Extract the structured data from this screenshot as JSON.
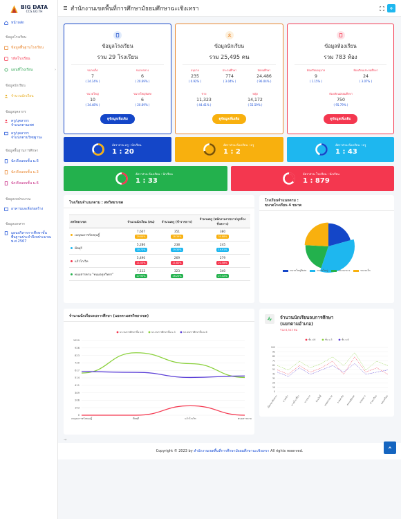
{
  "brand": {
    "title": "BIG DATA",
    "subtitle": "CCS.GO.TH"
  },
  "header": {
    "title": "สำนักงานเขตพื้นที่การศึกษามัธยมศึกษาฉะเชิงเทรา"
  },
  "sidebar": {
    "home": "หน้าหลัก",
    "sections": {
      "school": "ข้อมูลโรงเรียน",
      "student": "ข้อมูลนักเรียน",
      "staff": "ข้อมูลบุคลากร",
      "quality": "ข้อมูลพื้นฐานการศึกษา",
      "budget": "ข้อมูลงบประมาณ",
      "docs": "ข้อมูลเอกสาร"
    },
    "items": {
      "school_basic": "ข้อมูลพื้นฐานโรงเรียน",
      "school_code": "รหัสโรงเรียน",
      "school_map": "แผนที่โรงเรียน",
      "student_count": "จำนวนนักเรียน",
      "staff_count_1": "ครู/บุคลากร",
      "staff_count_1b": "จำแนกตามเพศ",
      "staff_count_2": "ครู/บุคลากร",
      "staff_count_2b": "จำแนกตามวิทยฐานะ",
      "grad_1": "นักเรียนจบชั้น ม.6",
      "grad_2": "นักเรียนจบชั้น ม.3",
      "grad_3": "นักเรียนจบชั้น ม.6",
      "budget_1": "อาคารและสิ่งก่อสร้าง",
      "doc_1a": "แผนบริหารการศึกษาขั้น",
      "doc_1b": "พื้นฐานประจำปีงบประมาณ",
      "doc_1c": "พ.ศ.2567"
    }
  },
  "school_card": {
    "title": "ข้อมูลโรงเรียน",
    "total": "รวม 29 โรงเรียน",
    "cells": [
      {
        "label": "ขนาดเล็ก",
        "value": "7",
        "pct": "( 24.14% )"
      },
      {
        "label": "ขนาดกลาง",
        "value": "6",
        "pct": "( 20.69% )"
      },
      {
        "label": "ขนาดใหญ่",
        "value": "10",
        "pct": "( 34.48% )"
      },
      {
        "label": "ขนาดใหญ่พิเศษ",
        "value": "6",
        "pct": "( 20.69% )"
      }
    ],
    "button": "ดูข้อมูลเพิ่มเติม"
  },
  "student_card": {
    "title": "ข้อมูลนักเรียน",
    "total": "รวม 25,495 คน",
    "cells": [
      {
        "label": "อนุบาล",
        "value": "235",
        "pct": "( 0.92% )"
      },
      {
        "label": "ประถมศึกษา",
        "value": "774",
        "pct": "( 3.04% )"
      },
      {
        "label": "มัธยมศึกษา",
        "value": "24,486",
        "pct": "( 96.04% )"
      },
      {
        "label": "ชาย",
        "value": "11,323",
        "pct": "( 44.41% )"
      },
      {
        "label": "หญิง",
        "value": "14,172",
        "pct": "( 55.59% )"
      }
    ],
    "button": "ดูข้อมูลเพิ่มเติม"
  },
  "room_card": {
    "title": "ข้อมูลห้องเรียน",
    "total": "รวม 783 ห้อง",
    "cells": [
      {
        "label": "ห้องเรียนอนุบาล",
        "value": "9",
        "pct": "( 1.15% )"
      },
      {
        "label": "ห้องเรียนประถมศึกษา",
        "value": "24",
        "pct": "( 3.07% )"
      },
      {
        "label": "ห้องเรียนมัธยมศึกษา",
        "value": "750",
        "pct": "( 95.79% )"
      }
    ],
    "button": "ดูข้อมูลเพิ่มเติม"
  },
  "ratios": [
    {
      "label": "อัตราส่วน ครู : นักเรียน",
      "value": "1 : 20",
      "color": "#1446c8",
      "fill": 0.65
    },
    {
      "label": "อัตราส่วน ห้องเรียน : ครู",
      "value": "1 : 2",
      "color": "#f8b00e",
      "fill": 0.7
    },
    {
      "label": "อัตราส่วน ห้องเรียน : ครู",
      "value": "1 : 43",
      "color": "#1eb7ef",
      "fill": 0.55
    },
    {
      "label": "อัตราส่วน ห้องเรียน : นักเรียน",
      "value": "1 : 33",
      "color": "#23b14d",
      "fill": 0.5
    },
    {
      "label": "อัตราส่วน โรงเรียน : นักเรียน",
      "value": "1 : 879",
      "color": "#f4374f",
      "fill": 0.35
    }
  ],
  "district_table": {
    "title": "โรงเรียนจำแนกตาม : สหวิทยาเขต",
    "headers": [
      "สหวิทยาเขต",
      "จำนวนนักเรียน (คน)",
      "จำนวนครู (ข้าราชการ)",
      "จำนวนครู (พนักงานราชการ/ลูกจ้างชั่วคราว)"
    ],
    "rows": [
      {
        "name": "เบญจมราชรังสฤษฎิ์",
        "dot": "#f8b00e",
        "c1": "7,607",
        "b1": "29.84%",
        "c2": "351",
        "b2": "28.39%",
        "c3": "380",
        "b3": "30.88%"
      },
      {
        "name": "พีตพุรี",
        "dot": "#1eb7ef",
        "c1": "5,286",
        "b1": "20.73%",
        "c2": "238",
        "b2": "19.30%",
        "c3": "245",
        "b3": "19.91%"
      },
      {
        "name": "แก้วโกเวิท",
        "dot": "#f4374f",
        "c1": "5,490",
        "b1": "21.53%",
        "c2": "269",
        "b2": "21.82%",
        "c3": "279",
        "b3": "22.58%"
      },
      {
        "name": "พนมสารคาม \"พนมอดุลวิทยา\"",
        "dot": "#23b14d",
        "c1": "7,112",
        "b1": "27.90%",
        "c2": "323",
        "b2": "26.20%",
        "c3": "340",
        "b3": "27.32%"
      }
    ],
    "badge_colors": [
      "#f8b00e",
      "#1eb7ef",
      "#f4374f",
      "#23b14d"
    ]
  },
  "size_panel": {
    "title1": "โรงเรียนจำแนกตาม :",
    "title2": "ขนาดโรงเรียน 4 ขนาด",
    "legend": [
      "ขนาดใหญ่พิเศษ",
      "ขนาดใหญ่",
      "ขนาดกลาง",
      "ขนาดเล็ก"
    ]
  },
  "grad_panel": {
    "title": "จำนวนนักเรียนจบการศึกษา (แยกตามสหวิทยาเขต)"
  },
  "grad_panel2": {
    "title1": "จำนวนนักเรียนจบการศึกษา",
    "title2": "(แยกตามอำเภอ)",
    "sub": "รวม 8,543 คน"
  },
  "footer": {
    "prefix": "Copyright © 2023 by",
    "link": "สำนักงานเขตพื้นที่การศึกษามัธยมศึกษาฉะเชิงเทรา",
    "suffix": "All rights reserved."
  },
  "chart_data": [
    {
      "type": "pie",
      "title": "โรงเรียนจำแนกตาม : ขนาดโรงเรียน 4 ขนาด",
      "categories": [
        "ขนาดใหญ่พิเศษ",
        "ขนาดใหญ่",
        "ขนาดกลาง",
        "ขนาดเล็ก"
      ],
      "values": [
        6,
        10,
        6,
        7
      ],
      "colors": [
        "#1446c8",
        "#1eb7ef",
        "#23b14d",
        "#f8b00e"
      ],
      "legend": "bottom"
    },
    {
      "type": "line",
      "title": "จำนวนนักเรียนจบการศึกษา (แยกตามสหวิทยาเขต)",
      "categories": [
        "เบญจมราชรังสฤษฎิ์",
        "พีตพุรี",
        "แก้วโกเวิท",
        "พนมสารคาม"
      ],
      "y_ticks": [
        "1029",
        "926",
        "823",
        "720",
        "617",
        "514",
        "411",
        "309",
        "206",
        "103",
        "0"
      ],
      "ylim": [
        0,
        1029
      ],
      "legend": "top",
      "series": [
        {
          "name": "นร.จบการศึกษาชั้น ป.6",
          "color": "#f4374f",
          "values": [
            0,
            0,
            130,
            0
          ]
        },
        {
          "name": "นร.จบการศึกษาชั้น ม.3",
          "color": "#8bd13d",
          "values": [
            580,
            860,
            710,
            520
          ]
        },
        {
          "name": "นร.จบการศึกษาชั้น ม.6",
          "color": "#5b3fd6",
          "values": [
            600,
            590,
            520,
            540
          ]
        }
      ]
    },
    {
      "type": "line",
      "title": "จำนวนนักเรียนจบการศึกษา (แยกตามอำเภอ)",
      "categories": [
        "เมืองฉะเชิงเทรา",
        "บางคล้า",
        "บางน้ำเปรี้ยว",
        "บางปะกง",
        "บ้านโพธิ์",
        "พนมสารคาม",
        "ราชสาส์น",
        "สนามชัยเขต",
        "แปลงยาว",
        "ท่าตะเกียบ",
        "คลองเขื่อน"
      ],
      "y_ticks": [
        "102",
        "92",
        "82",
        "71",
        "61",
        "51",
        "41",
        "31",
        "20",
        "10",
        "0"
      ],
      "ylim": [
        0,
        102
      ],
      "legend": "top",
      "series": [
        {
          "name": "ชั้น ป.6",
          "color": "#f4374f",
          "values": [
            50,
            40,
            60,
            45,
            55,
            70,
            40,
            80,
            45,
            55,
            40
          ]
        },
        {
          "name": "ชั้น ม.3",
          "color": "#8bd13d",
          "values": [
            60,
            50,
            70,
            55,
            65,
            80,
            60,
            90,
            50,
            70,
            60
          ]
        },
        {
          "name": "ชั้น ม.6",
          "color": "#5b3fd6",
          "values": [
            45,
            35,
            55,
            40,
            50,
            60,
            45,
            65,
            40,
            45,
            50
          ]
        }
      ]
    }
  ]
}
